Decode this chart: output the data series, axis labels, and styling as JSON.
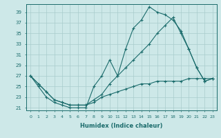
{
  "xlabel": "Humidex (Indice chaleur)",
  "ylabel": "",
  "bg_color": "#cde8e8",
  "grid_color": "#a8cccc",
  "line_color": "#1a6b6b",
  "xlim": [
    -0.5,
    23.5
  ],
  "ylim": [
    20.5,
    40.5
  ],
  "xticks": [
    0,
    1,
    2,
    3,
    4,
    5,
    6,
    7,
    8,
    9,
    10,
    11,
    12,
    13,
    14,
    15,
    16,
    17,
    18,
    19,
    20,
    21,
    22,
    23
  ],
  "yticks": [
    21,
    23,
    25,
    27,
    29,
    31,
    33,
    35,
    37,
    39
  ],
  "line1_x": [
    0,
    1,
    2,
    3,
    4,
    5,
    6,
    7,
    8,
    9,
    10,
    11,
    12,
    13,
    14,
    15,
    16,
    17,
    18,
    19,
    20,
    21,
    22,
    23
  ],
  "line1_y": [
    27,
    25,
    23,
    22,
    21.5,
    21,
    21,
    21,
    25,
    27,
    30,
    27,
    32,
    36,
    37.5,
    40,
    39,
    38.5,
    37.5,
    35.5,
    32,
    28.5,
    26,
    26.5
  ],
  "line2_x": [
    0,
    1,
    2,
    3,
    4,
    5,
    6,
    7,
    8,
    9,
    10,
    11,
    12,
    13,
    14,
    15,
    16,
    17,
    18,
    19,
    20,
    21,
    22,
    23
  ],
  "line2_y": [
    27,
    25.5,
    24,
    22.5,
    22,
    21.5,
    21.5,
    21.5,
    22.5,
    23.5,
    25.5,
    27,
    28.5,
    30,
    31.5,
    33,
    35,
    36.5,
    38,
    35,
    32,
    28.5,
    26,
    26.5
  ],
  "line3_x": [
    0,
    1,
    2,
    3,
    4,
    5,
    6,
    7,
    8,
    9,
    10,
    11,
    12,
    13,
    14,
    15,
    16,
    17,
    18,
    19,
    20,
    21,
    22,
    23
  ],
  "line3_y": [
    27,
    25.5,
    24,
    22.5,
    22,
    21.5,
    21.5,
    21.5,
    22,
    23,
    23.5,
    24,
    24.5,
    25,
    25.5,
    25.5,
    26,
    26,
    26,
    26,
    26.5,
    26.5,
    26.5,
    26.5
  ]
}
